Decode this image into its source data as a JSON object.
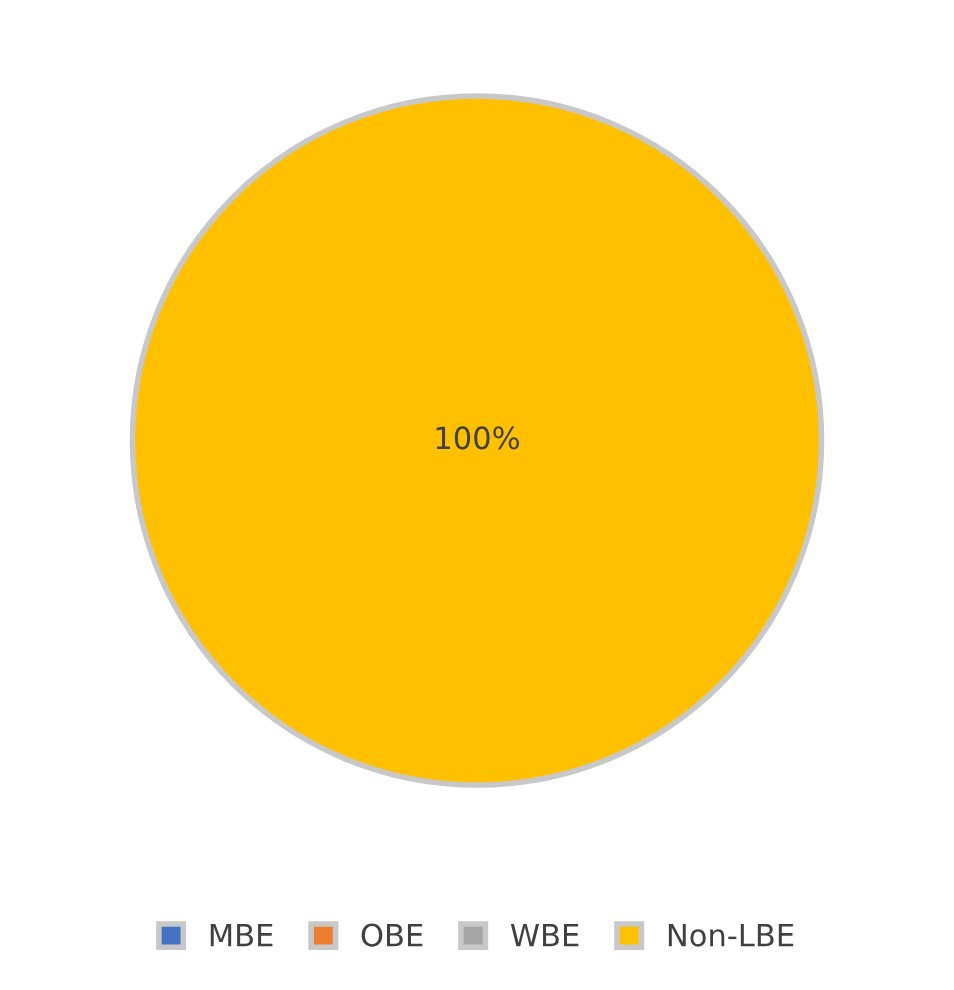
{
  "chart_data": {
    "type": "pie",
    "categories": [
      "MBE",
      "OBE",
      "WBE",
      "Non-LBE"
    ],
    "values": [
      0,
      0,
      0,
      100
    ],
    "colors": [
      "#4472c4",
      "#ed7d31",
      "#a5a5a5",
      "#ffc000"
    ],
    "value_labels": [
      null,
      null,
      null,
      "100%"
    ],
    "legend": "bottom"
  }
}
